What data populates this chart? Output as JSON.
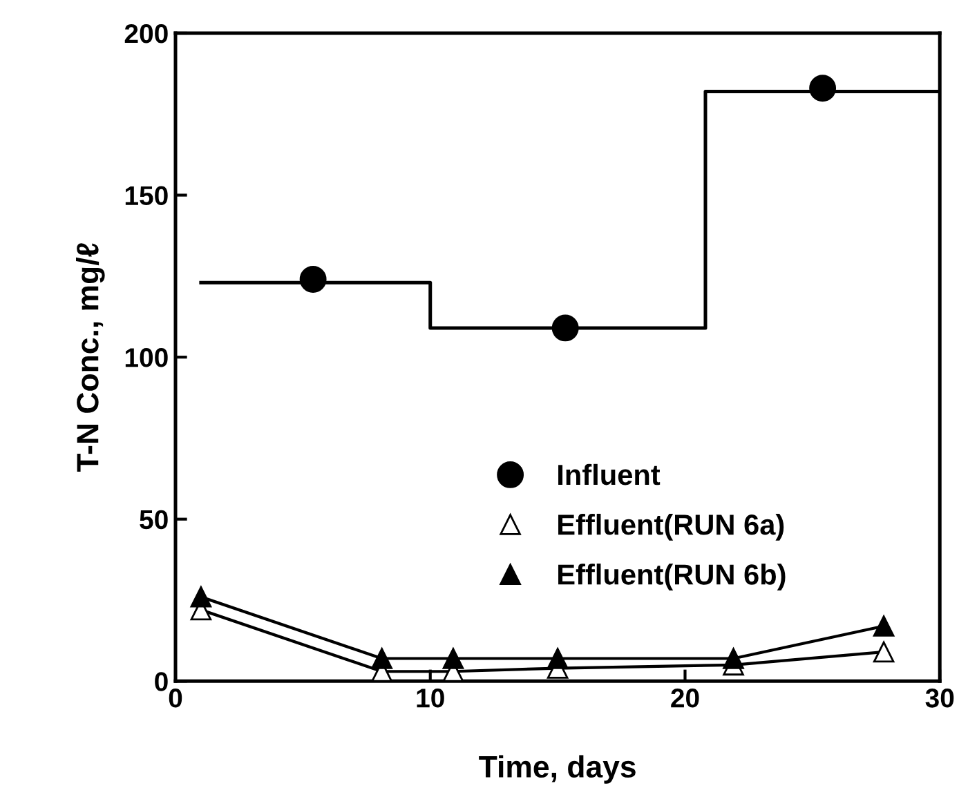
{
  "chart_data": {
    "type": "scatter",
    "xlabel": "Time, days",
    "ylabel": "T-N Conc., mg/ℓ",
    "xlim": [
      0,
      30
    ],
    "ylim": [
      0,
      200
    ],
    "xticks": [
      0,
      10,
      20,
      30
    ],
    "yticks": [
      0,
      50,
      100,
      150,
      200
    ],
    "grid": false,
    "legend": "bottom",
    "series": [
      {
        "type": "step",
        "color": "#000000",
        "marker": "none",
        "x": [
          1,
          10,
          20.8,
          30
        ],
        "values": [
          123,
          109,
          182,
          182
        ]
      },
      {
        "name": "Influent",
        "color": "#000000",
        "marker": "circle",
        "x": [
          5.4,
          15.3,
          25.4
        ],
        "values": [
          124,
          109,
          183
        ]
      },
      {
        "name": "Effluent(RUN 6a)",
        "type": "line",
        "color": "#000000",
        "marker": "triangle",
        "x": [
          1,
          8.1,
          10.9,
          15,
          21.9,
          27.8
        ],
        "values": [
          22,
          3,
          3,
          4,
          5,
          9
        ]
      },
      {
        "name": "Effluent(RUN 6b)",
        "type": "line",
        "color": "#000000",
        "marker": "triangle",
        "x": [
          1,
          8.1,
          10.9,
          15,
          21.9,
          27.8
        ],
        "values": [
          26,
          7,
          7,
          7,
          7,
          17
        ]
      }
    ]
  }
}
